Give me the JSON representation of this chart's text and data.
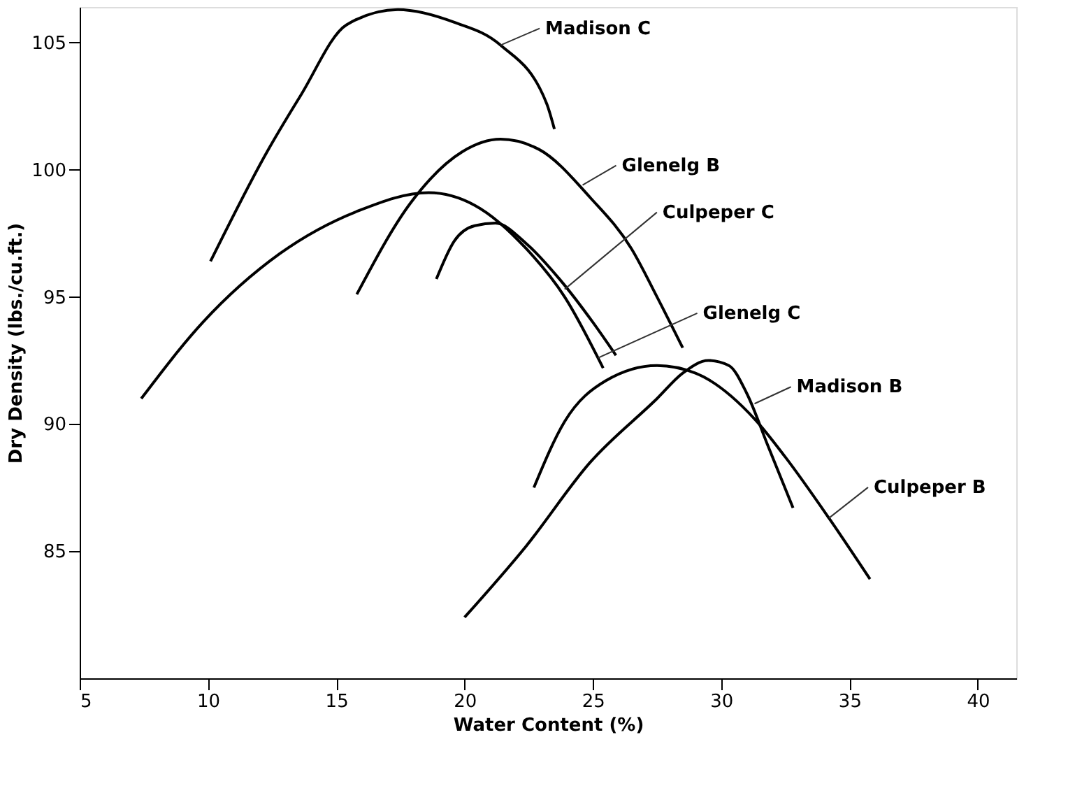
{
  "chart_data": {
    "type": "line",
    "xlabel": "Water Content (%)",
    "ylabel": "Dry Density (lbs./cu.ft.)",
    "xlim": [
      5,
      41.5
    ],
    "ylim": [
      80,
      106.4
    ],
    "xticks": [
      5,
      10,
      15,
      20,
      25,
      30,
      35,
      40
    ],
    "yticks": [
      85,
      90,
      95,
      100,
      105
    ],
    "grid": false,
    "marker": "none",
    "line_style": "solid",
    "series": [
      {
        "color": "#000000",
        "x": [
          10.1,
          12.3,
          13.6,
          15.4,
          17.4,
          19.6,
          21.4,
          23.2,
          23.5
        ],
        "values": [
          96.4,
          100.7,
          102.9,
          105.7,
          106.3,
          105.8,
          104.9,
          102.6,
          101.6
        ]
      },
      {
        "color": "#000000",
        "x": [
          15.8,
          17.9,
          19.9,
          21.4,
          22.9,
          24.9,
          26.5,
          27.5,
          28.5
        ],
        "values": [
          95.1,
          98.7,
          100.7,
          101.2,
          100.8,
          98.9,
          96.9,
          95.0,
          93.0
        ]
      },
      {
        "color": "#000000",
        "x": [
          18.9,
          19.6,
          20.4,
          21.2,
          22.4,
          23.7,
          25.0,
          25.9
        ],
        "values": [
          95.7,
          97.2,
          97.8,
          97.9,
          97.1,
          95.7,
          94.0,
          92.7
        ]
      },
      {
        "color": "#000000",
        "x": [
          7.4,
          9.8,
          12.8,
          15.9,
          18.6,
          20.4,
          22.4,
          23.9,
          25.4
        ],
        "values": [
          91.0,
          94.0,
          96.7,
          98.4,
          99.1,
          98.6,
          96.9,
          95.0,
          92.2
        ]
      },
      {
        "color": "#000000",
        "x": [
          20.0,
          22.4,
          24.9,
          27.5,
          28.5,
          29.5,
          30.3,
          31.0,
          31.8,
          32.8
        ],
        "values": [
          82.4,
          85.2,
          88.5,
          91.0,
          92.0,
          92.5,
          92.3,
          91.2,
          89.2,
          86.7
        ]
      },
      {
        "color": "#000000",
        "x": [
          22.7,
          23.9,
          25.5,
          27.5,
          29.0,
          31.3,
          32.5,
          34.2,
          35.8
        ],
        "values": [
          87.5,
          90.1,
          91.7,
          92.3,
          92.0,
          90.2,
          88.7,
          86.3,
          83.9
        ]
      }
    ],
    "annotations": [
      {
        "text": "Madison C",
        "x": 21.4,
        "y": 104.9
      },
      {
        "text": "Glenelg B",
        "x": 24.6,
        "y": 99.4
      },
      {
        "text": "Culpeper C",
        "x": 23.9,
        "y": 95.3
      },
      {
        "text": "Glenelg C",
        "x": 25.2,
        "y": 92.6
      },
      {
        "text": "Madison B",
        "x": 31.3,
        "y": 90.8
      },
      {
        "text": "Culpeper B",
        "x": 34.2,
        "y": 86.3
      }
    ]
  }
}
